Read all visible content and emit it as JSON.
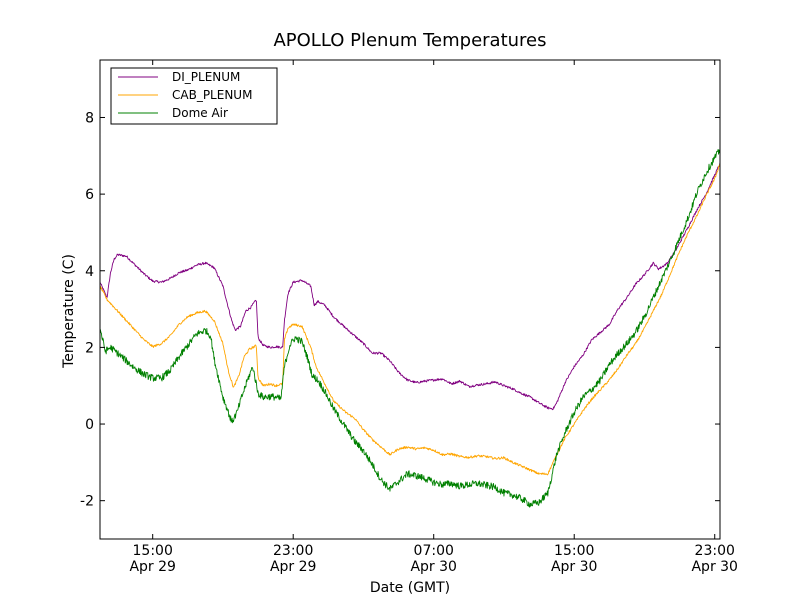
{
  "chart_data": {
    "type": "line",
    "title": "APOLLO Plenum Temperatures",
    "xlabel": "Date (GMT)",
    "ylabel": "Temperature (C)",
    "x_unit": "hours since Apr 29 12:00 GMT",
    "xlim": [
      0,
      35.3
    ],
    "ylim": [
      -3,
      9.5
    ],
    "yticks": [
      {
        "value": -2,
        "label": "-2"
      },
      {
        "value": 0,
        "label": "0"
      },
      {
        "value": 2,
        "label": "2"
      },
      {
        "value": 4,
        "label": "4"
      },
      {
        "value": 6,
        "label": "6"
      },
      {
        "value": 8,
        "label": "8"
      }
    ],
    "xticks": [
      {
        "value": 3,
        "time": "15:00",
        "date": "Apr 29"
      },
      {
        "value": 11,
        "time": "23:00",
        "date": "Apr 29"
      },
      {
        "value": 19,
        "time": "07:00",
        "date": "Apr 30"
      },
      {
        "value": 27,
        "time": "15:00",
        "date": "Apr 30"
      },
      {
        "value": 35,
        "time": "23:00",
        "date": "Apr 30"
      }
    ],
    "grid": false,
    "legend_position": "top-left",
    "series": [
      {
        "name": "DI_PLENUM",
        "color": "#800080",
        "noise": 0.03,
        "x": [
          0,
          0.4,
          0.6,
          0.8,
          1.0,
          1.5,
          2.0,
          2.5,
          3.0,
          3.5,
          4.0,
          4.5,
          5.0,
          5.5,
          6.0,
          6.5,
          7.0,
          7.3,
          7.5,
          7.7,
          8.0,
          8.3,
          8.6,
          8.9,
          9.0,
          9.3,
          9.7,
          10.0,
          10.4,
          10.5,
          10.7,
          11.0,
          11.5,
          12.0,
          12.2,
          12.4,
          12.8,
          13.3,
          14.0,
          14.5,
          15.0,
          15.5,
          16.0,
          16.5,
          17.0,
          17.5,
          18.0,
          18.5,
          19.0,
          19.5,
          20.0,
          20.5,
          21.0,
          21.5,
          22.0,
          22.5,
          23.0,
          23.5,
          24.0,
          24.5,
          25.0,
          25.5,
          25.8,
          26.0,
          26.5,
          27.0,
          27.5,
          28.0,
          28.5,
          29.0,
          29.5,
          30.0,
          30.5,
          31.0,
          31.5,
          31.8,
          32.0,
          32.3,
          32.8,
          33.5,
          34.0,
          34.5,
          35.0,
          35.3
        ],
        "y": [
          3.7,
          3.3,
          3.95,
          4.3,
          4.42,
          4.38,
          4.15,
          3.92,
          3.73,
          3.7,
          3.8,
          3.95,
          4.02,
          4.15,
          4.2,
          4.08,
          3.6,
          3.05,
          2.7,
          2.45,
          2.55,
          2.95,
          3.05,
          3.25,
          2.25,
          2.05,
          2.0,
          2.02,
          2.0,
          2.7,
          3.4,
          3.7,
          3.75,
          3.6,
          3.1,
          3.2,
          3.1,
          2.8,
          2.5,
          2.3,
          2.1,
          1.85,
          1.85,
          1.65,
          1.35,
          1.15,
          1.08,
          1.12,
          1.15,
          1.18,
          1.05,
          1.12,
          0.98,
          1.02,
          1.05,
          1.1,
          1.0,
          0.92,
          0.8,
          0.7,
          0.55,
          0.42,
          0.4,
          0.55,
          1.1,
          1.5,
          1.8,
          2.2,
          2.4,
          2.6,
          3.0,
          3.3,
          3.65,
          3.9,
          4.2,
          4.05,
          4.1,
          4.2,
          4.55,
          5.15,
          5.6,
          6.0,
          6.5,
          6.8
        ]
      },
      {
        "name": "CAB_PLENUM",
        "color": "#ffa500",
        "noise": 0.03,
        "x": [
          0,
          0.4,
          0.8,
          1.0,
          1.5,
          2.0,
          2.5,
          3.0,
          3.5,
          4.0,
          4.5,
          5.0,
          5.5,
          6.0,
          6.5,
          7.0,
          7.3,
          7.6,
          7.9,
          8.2,
          8.5,
          8.9,
          9.0,
          9.3,
          9.7,
          10.0,
          10.4,
          10.5,
          10.7,
          11.0,
          11.5,
          12.0,
          12.3,
          12.8,
          13.3,
          14.0,
          14.5,
          15.0,
          15.5,
          16.0,
          16.5,
          17.0,
          17.5,
          18.0,
          18.5,
          19.0,
          19.5,
          20.0,
          20.5,
          21.0,
          21.5,
          22.0,
          22.5,
          23.0,
          23.5,
          24.0,
          24.5,
          25.0,
          25.5,
          26.0,
          26.5,
          27.0,
          27.5,
          28.0,
          28.5,
          29.0,
          29.5,
          30.0,
          30.5,
          31.0,
          31.5,
          32.0,
          32.5,
          33.0,
          33.5,
          34.0,
          34.5,
          35.0,
          35.3
        ],
        "y": [
          3.6,
          3.25,
          3.05,
          2.95,
          2.7,
          2.45,
          2.2,
          2.02,
          2.1,
          2.3,
          2.6,
          2.8,
          2.9,
          2.95,
          2.7,
          2.1,
          1.4,
          0.95,
          1.25,
          1.75,
          1.95,
          2.05,
          1.2,
          1.0,
          1.05,
          1.0,
          1.05,
          2.2,
          2.5,
          2.6,
          2.55,
          2.0,
          1.5,
          1.05,
          0.6,
          0.3,
          0.15,
          -0.15,
          -0.4,
          -0.6,
          -0.8,
          -0.65,
          -0.6,
          -0.65,
          -0.62,
          -0.68,
          -0.8,
          -0.78,
          -0.85,
          -0.87,
          -0.83,
          -0.85,
          -0.9,
          -0.88,
          -1.0,
          -1.1,
          -1.2,
          -1.3,
          -1.3,
          -0.8,
          -0.35,
          0.0,
          0.35,
          0.65,
          0.9,
          1.15,
          1.45,
          1.8,
          2.1,
          2.5,
          2.95,
          3.4,
          3.95,
          4.5,
          5.0,
          5.45,
          5.95,
          6.4,
          6.8
        ]
      },
      {
        "name": "Dome Air",
        "color": "#008000",
        "noise": 0.09,
        "x": [
          0,
          0.3,
          0.6,
          1.0,
          1.5,
          2.0,
          2.5,
          3.0,
          3.5,
          4.0,
          4.5,
          5.0,
          5.5,
          6.0,
          6.3,
          6.5,
          6.8,
          7.0,
          7.2,
          7.5,
          7.8,
          8.1,
          8.4,
          8.7,
          9.0,
          9.3,
          9.7,
          10.0,
          10.3,
          10.5,
          10.8,
          11.1,
          11.5,
          11.8,
          12.1,
          12.4,
          12.8,
          13.3,
          14.0,
          14.5,
          15.0,
          15.5,
          16.0,
          16.5,
          17.0,
          17.5,
          18.0,
          18.5,
          19.0,
          19.5,
          20.0,
          20.5,
          21.0,
          21.5,
          22.0,
          22.5,
          23.0,
          23.5,
          24.0,
          24.5,
          25.0,
          25.5,
          26.0,
          26.5,
          27.0,
          27.5,
          28.0,
          28.5,
          29.0,
          29.5,
          30.0,
          30.5,
          31.0,
          31.5,
          32.0,
          32.5,
          33.0,
          33.5,
          34.0,
          34.5,
          35.0,
          35.3
        ],
        "y": [
          2.5,
          1.9,
          2.0,
          1.85,
          1.65,
          1.45,
          1.3,
          1.2,
          1.2,
          1.4,
          1.75,
          2.05,
          2.35,
          2.45,
          2.3,
          1.7,
          1.1,
          0.7,
          0.45,
          0.05,
          0.3,
          0.75,
          1.15,
          1.5,
          0.8,
          0.7,
          0.72,
          0.7,
          0.65,
          1.5,
          2.05,
          2.25,
          2.15,
          1.75,
          1.25,
          1.15,
          0.85,
          0.4,
          -0.1,
          -0.45,
          -0.7,
          -1.05,
          -1.45,
          -1.7,
          -1.5,
          -1.3,
          -1.35,
          -1.42,
          -1.52,
          -1.58,
          -1.55,
          -1.62,
          -1.58,
          -1.55,
          -1.6,
          -1.65,
          -1.8,
          -1.85,
          -1.95,
          -2.1,
          -2.05,
          -1.8,
          -0.8,
          -0.2,
          0.3,
          0.7,
          0.9,
          1.15,
          1.55,
          1.85,
          2.1,
          2.4,
          2.8,
          3.3,
          3.8,
          4.3,
          4.85,
          5.4,
          6.05,
          6.55,
          6.95,
          7.15
        ]
      }
    ]
  }
}
